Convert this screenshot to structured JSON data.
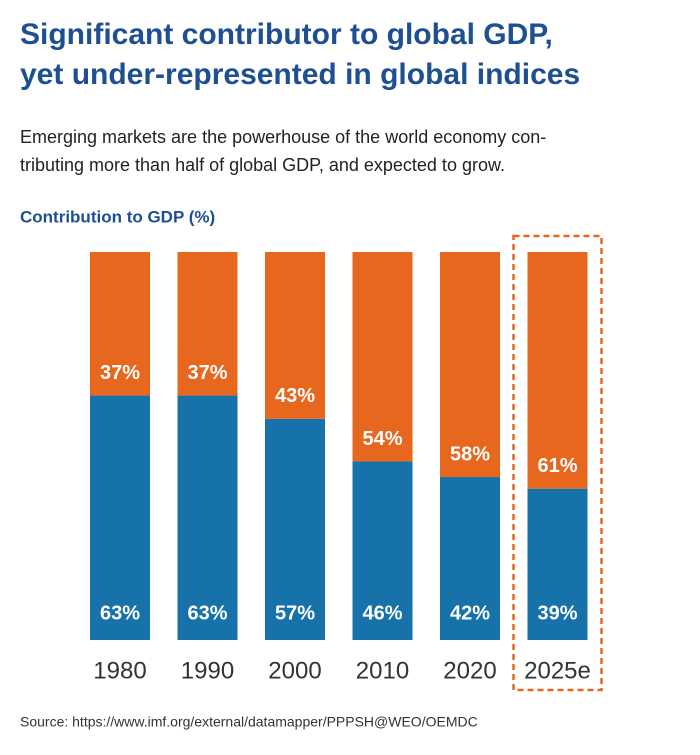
{
  "chart_data": {
    "type": "stacked_bar",
    "title": [
      "Significant contributor to global GDP,",
      "yet under-represented in global indices"
    ],
    "subtitle": [
      "Emerging markets are the powerhouse of the world economy con-",
      "tributing more than half of global GDP, and expected to grow."
    ],
    "y_label": "Contribution to GDP (%)",
    "categories": [
      "1980",
      "1990",
      "2000",
      "2010",
      "2020",
      "2025e"
    ],
    "series": [
      {
        "color": "#1872aa",
        "values": [
          63,
          63,
          57,
          46,
          42,
          39
        ],
        "value_labels": [
          "63%",
          "63%",
          "57%",
          "46%",
          "42%",
          "39%"
        ]
      },
      {
        "color": "#e8671f",
        "values": [
          37,
          37,
          43,
          54,
          58,
          61
        ],
        "value_labels": [
          "37%",
          "37%",
          "43%",
          "54%",
          "58%",
          "61%"
        ]
      }
    ],
    "ylim": [
      0,
      100
    ],
    "highlight": "2025e",
    "source": "Source: https://www.imf.org/external/datamapper/PPPSH@WEO/OEMDC"
  }
}
